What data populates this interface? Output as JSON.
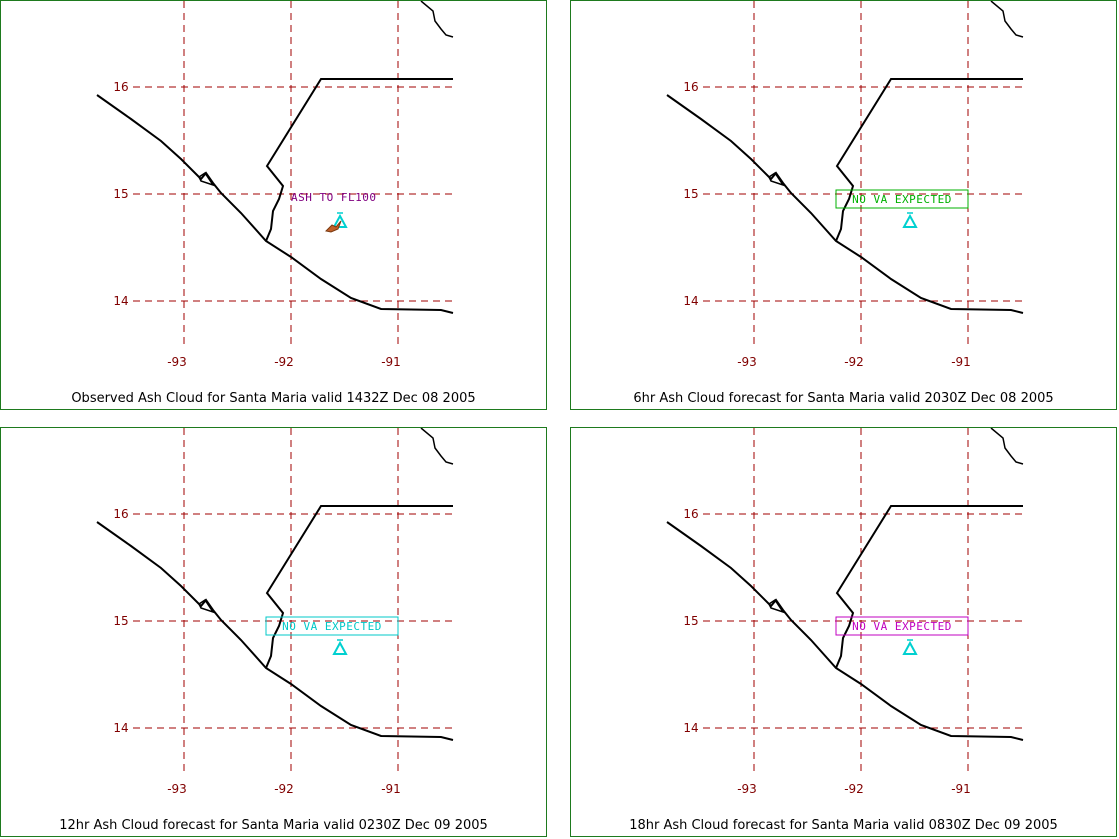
{
  "panels": [
    {
      "caption": "Observed Ash Cloud for Santa  Maria valid 1432Z Dec 08 2005",
      "label": "ASH TO FL100",
      "label_style": "plain",
      "label_color": "#800080",
      "show_ash_marker": true
    },
    {
      "caption": "6hr Ash Cloud forecast for Santa  Maria valid 2030Z Dec 08 2005",
      "label": "NO  VA  EXPECTED",
      "label_style": "boxed",
      "label_color": "#00b000",
      "show_ash_marker": false
    },
    {
      "caption": "12hr Ash Cloud forecast for Santa  Maria valid 0230Z Dec 09 2005",
      "label": "NO  VA  EXPECTED",
      "label_style": "boxed",
      "label_color": "#00c8c8",
      "show_ash_marker": false
    },
    {
      "caption": "18hr Ash Cloud forecast for Santa  Maria valid 0830Z Dec 09 2005",
      "label": "NO  VA  EXPECTED",
      "label_style": "boxed",
      "label_color": "#c000c0",
      "show_ash_marker": false
    }
  ],
  "lat_labels": [
    "16",
    "15",
    "14"
  ],
  "lon_labels": [
    "-93",
    "-92",
    "-91"
  ],
  "colors": {
    "grid": "#a00000",
    "tick_text": "#800000",
    "coastline": "#000000",
    "volcano": "#00d0d0",
    "frame": "#1e7a1e"
  },
  "icons": {
    "volcano": "volcano-triangle-icon",
    "ash": "ash-plume-icon"
  }
}
